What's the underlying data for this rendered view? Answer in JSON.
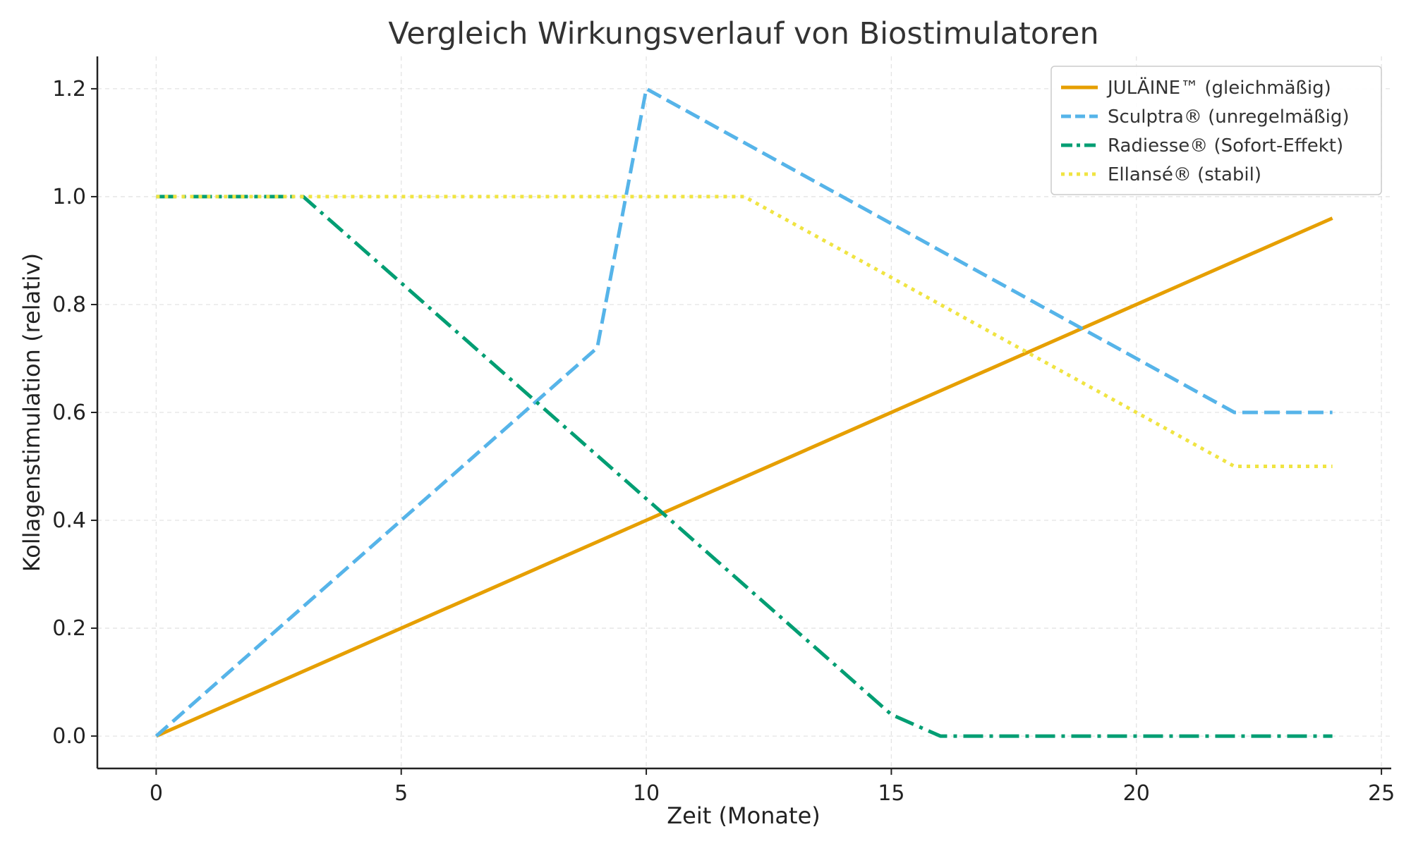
{
  "chart_data": {
    "type": "line",
    "title": "Vergleich Wirkungsverlauf von Biostimulatoren",
    "xlabel": "Zeit (Monate)",
    "ylabel": "Kollagenstimulation (relativ)",
    "xlim": [
      -1.2,
      25.2
    ],
    "ylim": [
      -0.06,
      1.26
    ],
    "xticks": [
      0,
      5,
      10,
      15,
      20,
      25
    ],
    "xtick_labels": [
      "0",
      "5",
      "10",
      "15",
      "20",
      "25"
    ],
    "yticks": [
      0.0,
      0.2,
      0.4,
      0.6,
      0.8,
      1.0,
      1.2
    ],
    "ytick_labels": [
      "0.0",
      "0.2",
      "0.4",
      "0.6",
      "0.8",
      "1.0",
      "1.2"
    ],
    "grid": true,
    "legend_position": "top-right",
    "series": [
      {
        "name": "JULÄINE™ (gleichmäßig)",
        "color": "#E69F00",
        "style": "solid",
        "x": [
          0,
          24
        ],
        "y": [
          0.0,
          0.96
        ]
      },
      {
        "name": "Sculptra® (unregelmäßig)",
        "color": "#56B4E9",
        "style": "dashed",
        "x": [
          0,
          9,
          10,
          22,
          24
        ],
        "y": [
          0.0,
          0.72,
          1.2,
          0.6,
          0.6
        ]
      },
      {
        "name": "Radiesse® (Sofort-Effekt)",
        "color": "#009E73",
        "style": "dashdot",
        "x": [
          0,
          3,
          15,
          16,
          24
        ],
        "y": [
          1.0,
          1.0,
          0.04,
          0.0,
          0.0
        ]
      },
      {
        "name": "Ellansé® (stabil)",
        "color": "#F0E442",
        "style": "dotted",
        "x": [
          0,
          12,
          22,
          24
        ],
        "y": [
          1.0,
          1.0,
          0.5,
          0.5
        ]
      }
    ]
  }
}
